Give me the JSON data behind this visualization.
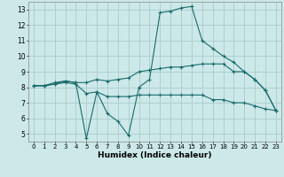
{
  "title": "",
  "xlabel": "Humidex (Indice chaleur)",
  "xlim": [
    -0.5,
    23.5
  ],
  "ylim": [
    4.5,
    13.5
  ],
  "xticks": [
    0,
    1,
    2,
    3,
    4,
    5,
    6,
    7,
    8,
    9,
    10,
    11,
    12,
    13,
    14,
    15,
    16,
    17,
    18,
    19,
    20,
    21,
    22,
    23
  ],
  "yticks": [
    5,
    6,
    7,
    8,
    9,
    10,
    11,
    12,
    13
  ],
  "background_color": "#cce8e8",
  "grid_color": "#aacccc",
  "line_color": "#1a6b6b",
  "lines": [
    {
      "x": [
        0,
        1,
        2,
        3,
        4,
        5,
        6,
        7,
        8,
        9,
        10,
        11,
        12,
        13,
        14,
        15,
        16,
        17,
        18,
        19,
        20,
        21,
        22,
        23
      ],
      "y": [
        8.1,
        8.1,
        8.3,
        8.4,
        8.3,
        8.3,
        8.5,
        8.4,
        8.5,
        8.6,
        9.0,
        9.1,
        9.2,
        9.3,
        9.3,
        9.4,
        9.5,
        9.5,
        9.5,
        9.0,
        9.0,
        8.5,
        7.8,
        6.5
      ]
    },
    {
      "x": [
        0,
        1,
        2,
        3,
        4,
        5,
        6,
        7,
        8,
        9,
        10,
        11,
        12,
        13,
        14,
        15,
        16,
        17,
        18,
        19,
        20,
        21,
        22,
        23
      ],
      "y": [
        8.1,
        8.1,
        8.2,
        8.3,
        8.2,
        7.6,
        7.7,
        7.4,
        7.4,
        7.4,
        7.5,
        7.5,
        7.5,
        7.5,
        7.5,
        7.5,
        7.5,
        7.2,
        7.2,
        7.0,
        7.0,
        6.8,
        6.6,
        6.5
      ]
    },
    {
      "x": [
        0,
        1,
        2,
        3,
        4,
        5,
        6,
        7,
        8,
        9,
        10,
        11,
        12,
        13,
        14,
        15,
        16,
        17,
        18,
        19,
        20,
        21,
        22,
        23
      ],
      "y": [
        8.1,
        8.1,
        8.2,
        8.4,
        8.3,
        4.7,
        7.7,
        6.3,
        5.8,
        4.9,
        8.0,
        8.5,
        12.8,
        12.9,
        13.1,
        13.2,
        11.0,
        10.5,
        10.0,
        9.6,
        9.0,
        8.5,
        7.8,
        6.5
      ]
    }
  ]
}
